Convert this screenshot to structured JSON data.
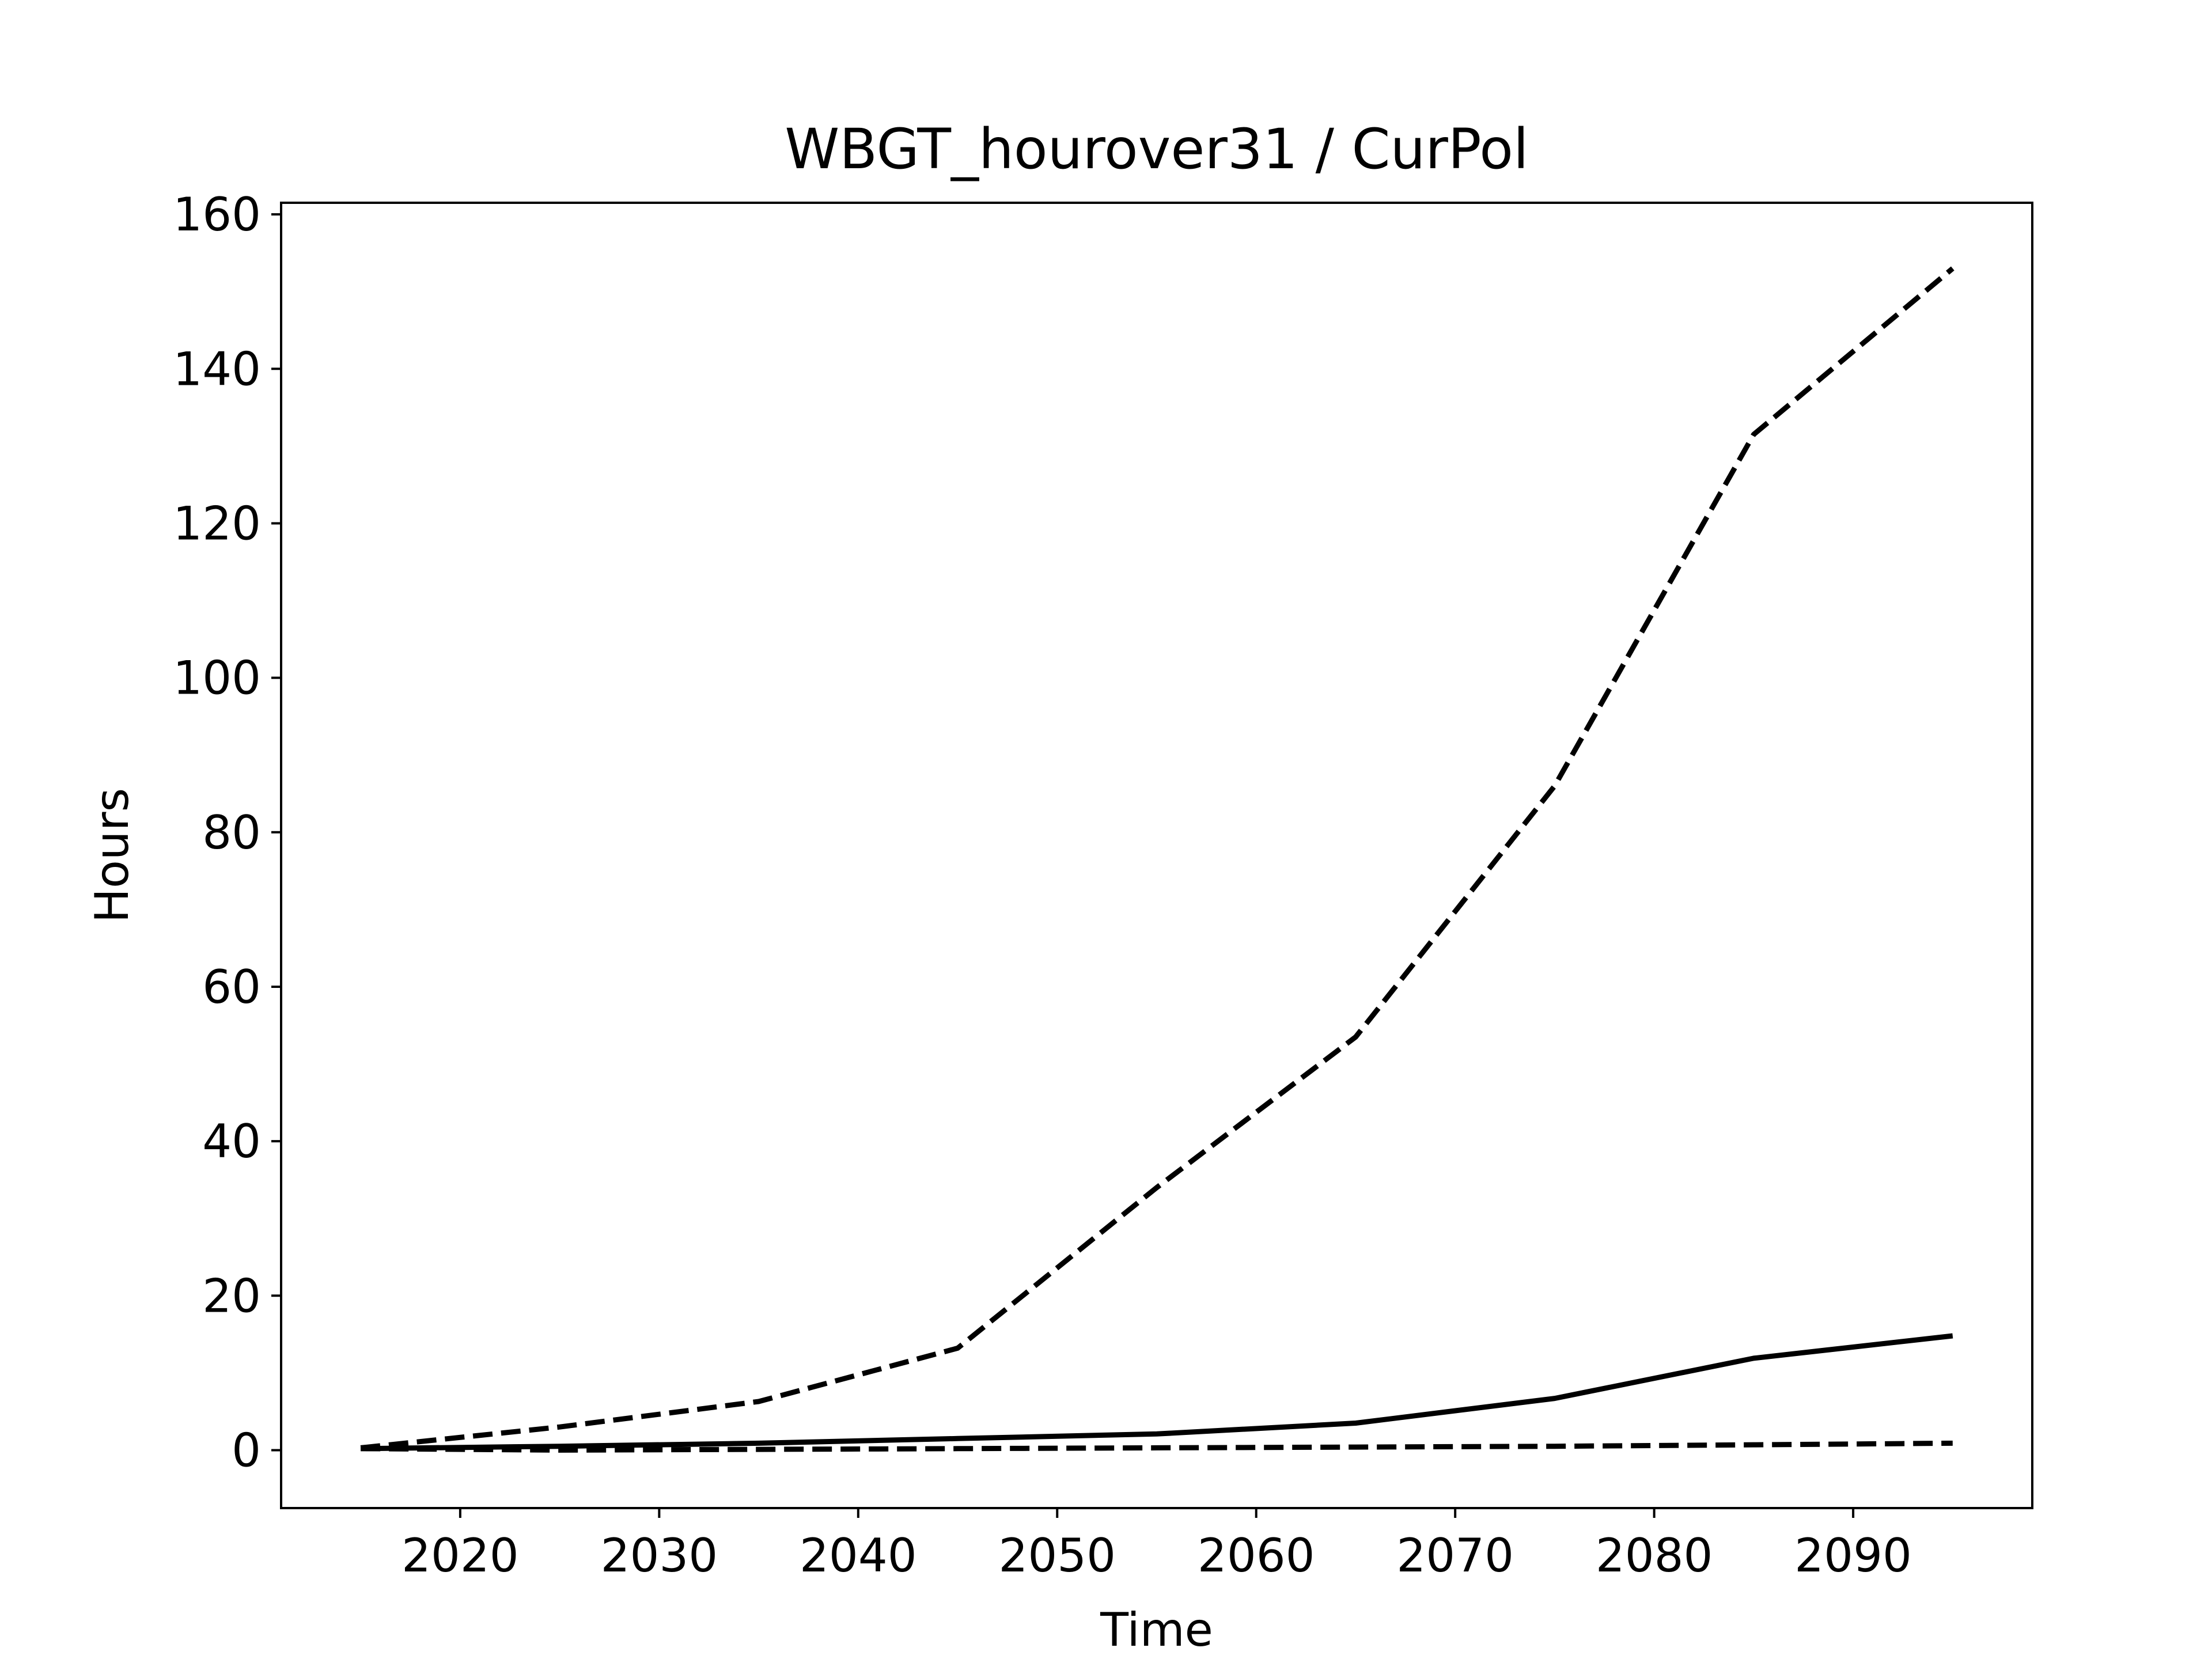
{
  "chart_data": {
    "type": "line",
    "title": "WBGT_hourover31 / CurPol",
    "xlabel": "Time",
    "ylabel": "Hours",
    "xlim": [
      2011,
      2099
    ],
    "ylim": [
      -7.5,
      161.5
    ],
    "xticks": [
      2020,
      2030,
      2040,
      2050,
      2060,
      2070,
      2080,
      2090
    ],
    "yticks": [
      0,
      20,
      40,
      60,
      80,
      100,
      120,
      140,
      160
    ],
    "grid": false,
    "legend": "none",
    "x": [
      2015,
      2025,
      2035,
      2045,
      2055,
      2065,
      2075,
      2085,
      2095
    ],
    "series": [
      {
        "style": "dashed",
        "color": "#000000",
        "values": [
          0.3,
          3.0,
          6.3,
          13.2,
          34.0,
          53.5,
          86.0,
          131.5,
          153.0
        ]
      },
      {
        "style": "solid",
        "color": "#000000",
        "values": [
          0.2,
          0.5,
          0.9,
          1.5,
          2.1,
          3.5,
          6.7,
          11.9,
          14.8
        ]
      },
      {
        "style": "dashed",
        "color": "#000000",
        "values": [
          0.2,
          0.0,
          0.1,
          0.2,
          0.3,
          0.4,
          0.5,
          0.7,
          0.9
        ]
      }
    ]
  }
}
